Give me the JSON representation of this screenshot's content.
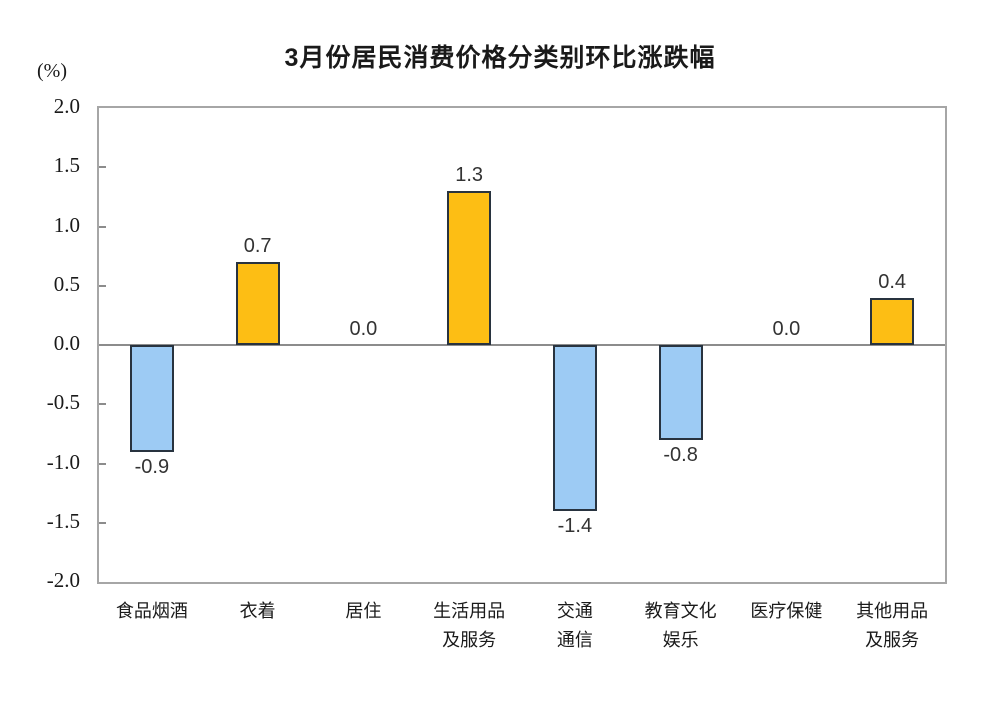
{
  "title": "3月份居民消费价格分类别环比涨跌幅",
  "chart_data": {
    "type": "bar",
    "title": "3月份居民消费价格分类别环比涨跌幅",
    "unit": "(%)",
    "categories": [
      "食品烟酒",
      "衣着",
      "居住",
      "生活用品及服务",
      "交通通信",
      "教育文化娱乐",
      "医疗保健",
      "其他用品及服务"
    ],
    "category_label_lines": [
      [
        "食品烟酒"
      ],
      [
        "衣着"
      ],
      [
        "居住"
      ],
      [
        "生活用品",
        "及服务"
      ],
      [
        "交通",
        "通信"
      ],
      [
        "教育文化",
        "娱乐"
      ],
      [
        "医疗保健"
      ],
      [
        "其他用品",
        "及服务"
      ]
    ],
    "values": [
      -0.9,
      0.7,
      0.0,
      1.3,
      -1.4,
      -0.8,
      0.0,
      0.4
    ],
    "value_labels": [
      "-0.9",
      "0.7",
      "0.0",
      "1.3",
      "-1.4",
      "-0.8",
      "0.0",
      "0.4"
    ],
    "ylabel": "(%)",
    "ylim": [
      -2.0,
      2.0
    ],
    "ytick_step": 0.5,
    "ytick_labels": [
      "2.0",
      "1.5",
      "1.0",
      "0.5",
      "0.0",
      "-0.5",
      "-1.0",
      "-1.5",
      "-2.0"
    ],
    "grid": false,
    "legend": "none",
    "colors": {
      "positive_bar": "#fdbe14",
      "negative_bar": "#9dcbf4",
      "bar_border": "#28333f",
      "axis_line": "#8c8c8c",
      "plot_border": "#a6a6a6",
      "label_text": "#333333",
      "background": "#ffffff"
    }
  }
}
